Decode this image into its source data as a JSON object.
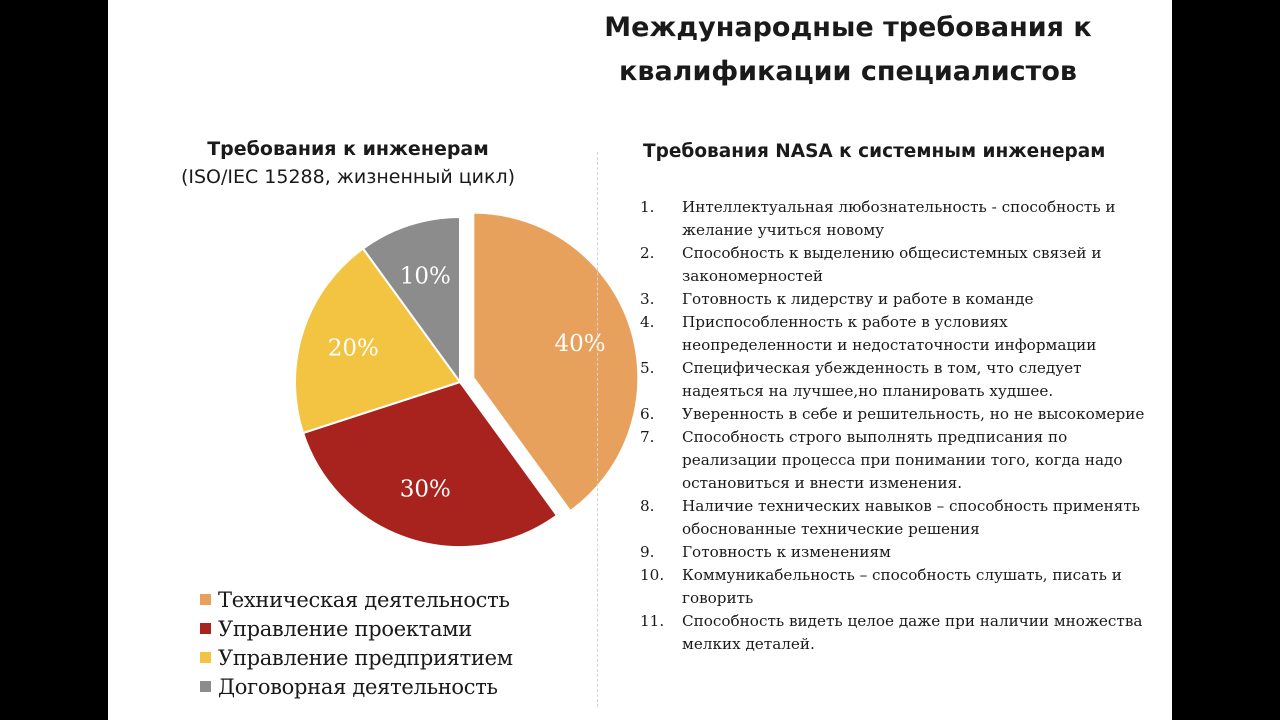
{
  "title": "Международные требования к\nквалификации специалистов",
  "chart_title": "Требования к инженерам",
  "chart_subtitle": "(ISO/IEC 15288, жизненный цикл)",
  "chart_data": {
    "type": "pie",
    "title": "Требования к инженерам",
    "subtitle": "(ISO/IEC 15288, жизненный цикл)",
    "categories": [
      "Техническая деятельность",
      "Управление проектами",
      "Управление предприятием",
      "Договорная деятельность"
    ],
    "values": [
      40,
      30,
      20,
      10
    ],
    "labels": [
      "40%",
      "30%",
      "20%",
      "10%"
    ],
    "colors": [
      "#e8a15c",
      "#a8231d",
      "#f2c442",
      "#8c8c8c"
    ],
    "exploded": "Техническая деятельность",
    "legend_position": "bottom"
  },
  "nasa": {
    "heading": "Требования NASA к системным инженерам",
    "items": [
      {
        "num": "1.",
        "text": "Интеллектуальная любознательность - способность и желание учиться новому"
      },
      {
        "num": "2.",
        "text": "Способность к выделению общесистемных связей и закономерностей"
      },
      {
        "num": "3.",
        "text": "Готовность к лидерству и работе в команде"
      },
      {
        "num": "4.",
        "text": "Приспособленность к работе в условиях неопределенности и недостаточности информации"
      },
      {
        "num": "5.",
        "text": "Специфическая убежденность в том, что следует надеяться на лучшее,но планировать худшее."
      },
      {
        "num": "6.",
        "text": "Уверенность в себе и решительность, но не высокомерие"
      },
      {
        "num": "7.",
        "text": "Способность строго выполнять предписания по реализации процесса при понимании того, когда надо остановиться и внести изменения."
      },
      {
        "num": "8.",
        "text": "Наличие технических навыков – способность применять обоснованные технические решения"
      },
      {
        "num": "9.",
        "text": "Готовность к изменениям"
      },
      {
        "num": "10.",
        "text": "Коммуникабельность – способность слушать, писать и говорить"
      },
      {
        "num": "11.",
        "text": "Способность видеть целое даже при наличии множества мелких деталей."
      }
    ]
  }
}
